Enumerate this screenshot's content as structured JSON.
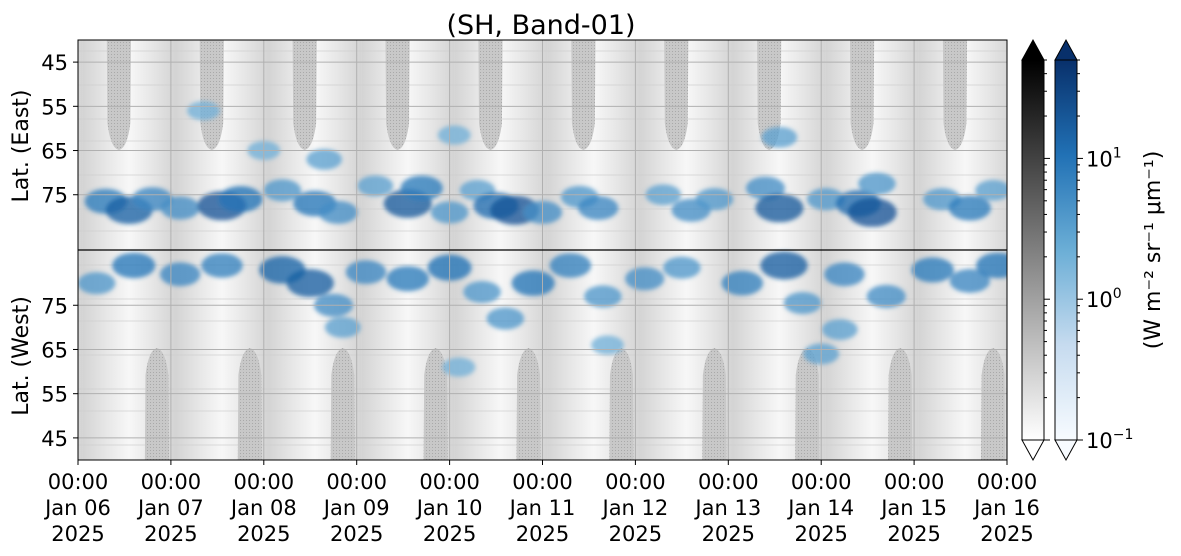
{
  "chart_data": {
    "type": "heatmap",
    "title": "(SH, Band-01)",
    "panels": [
      {
        "name": "east",
        "ylabel": "Lat. (East)",
        "yticks": [
          "45",
          "55",
          "65",
          "75"
        ],
        "ylim": [
          40,
          87.5
        ]
      },
      {
        "name": "west",
        "ylabel": "Lat. (West)",
        "yticks": [
          "75",
          "65",
          "55",
          "45"
        ],
        "ylim": [
          87.5,
          40
        ]
      }
    ],
    "x_ticks": [
      {
        "time": "00:00",
        "date": "Jan 06",
        "year": "2025"
      },
      {
        "time": "00:00",
        "date": "Jan 07",
        "year": "2025"
      },
      {
        "time": "00:00",
        "date": "Jan 08",
        "year": "2025"
      },
      {
        "time": "00:00",
        "date": "Jan 09",
        "year": "2025"
      },
      {
        "time": "00:00",
        "date": "Jan 10",
        "year": "2025"
      },
      {
        "time": "00:00",
        "date": "Jan 11",
        "year": "2025"
      },
      {
        "time": "00:00",
        "date": "Jan 12",
        "year": "2025"
      },
      {
        "time": "00:00",
        "date": "Jan 13",
        "year": "2025"
      },
      {
        "time": "00:00",
        "date": "Jan 14",
        "year": "2025"
      },
      {
        "time": "00:00",
        "date": "Jan 15",
        "year": "2025"
      },
      {
        "time": "00:00",
        "date": "Jan 16",
        "year": "2025"
      }
    ],
    "xlim": [
      "2025-01-06 00:00",
      "2025-01-16 00:00"
    ],
    "colorbar": {
      "label": "(W m⁻² sr⁻¹ μm⁻¹)",
      "scale": "log",
      "range": [
        0.1,
        50
      ],
      "tick_labels": [
        {
          "value": 10,
          "base": "10",
          "exp": "1"
        },
        {
          "value": 1,
          "base": "10",
          "exp": "0"
        },
        {
          "value": 0.1,
          "base": "10",
          "exp": "−1"
        }
      ],
      "colormaps": [
        "Greys",
        "Blues"
      ],
      "extend": "both"
    },
    "grid": true,
    "patches_east": [
      {
        "day": 0.3,
        "lat": 76.5,
        "value": 8
      },
      {
        "day": 0.55,
        "lat": 78.5,
        "value": 15
      },
      {
        "day": 0.8,
        "lat": 76.0,
        "value": 6
      },
      {
        "day": 1.1,
        "lat": 78.0,
        "value": 5
      },
      {
        "day": 1.55,
        "lat": 77.5,
        "value": 20
      },
      {
        "day": 1.75,
        "lat": 76.0,
        "value": 10
      },
      {
        "day": 2.2,
        "lat": 74.0,
        "value": 4
      },
      {
        "day": 2.55,
        "lat": 77.0,
        "value": 9
      },
      {
        "day": 2.65,
        "lat": 67.0,
        "value": 3
      },
      {
        "day": 2.8,
        "lat": 79.0,
        "value": 5
      },
      {
        "day": 3.2,
        "lat": 73.0,
        "value": 3
      },
      {
        "day": 3.55,
        "lat": 77.0,
        "value": 18
      },
      {
        "day": 3.7,
        "lat": 73.5,
        "value": 8
      },
      {
        "day": 4.0,
        "lat": 79.0,
        "value": 4
      },
      {
        "day": 4.3,
        "lat": 74.0,
        "value": 3
      },
      {
        "day": 4.5,
        "lat": 77.5,
        "value": 12
      },
      {
        "day": 4.7,
        "lat": 78.5,
        "value": 20
      },
      {
        "day": 5.0,
        "lat": 79.0,
        "value": 5
      },
      {
        "day": 5.4,
        "lat": 75.5,
        "value": 4
      },
      {
        "day": 5.6,
        "lat": 78.0,
        "value": 6
      },
      {
        "day": 6.3,
        "lat": 75.0,
        "value": 3
      },
      {
        "day": 6.6,
        "lat": 78.5,
        "value": 5
      },
      {
        "day": 6.85,
        "lat": 76.0,
        "value": 4
      },
      {
        "day": 7.4,
        "lat": 73.5,
        "value": 5
      },
      {
        "day": 7.55,
        "lat": 78.0,
        "value": 18
      },
      {
        "day": 7.55,
        "lat": 62.0,
        "value": 3
      },
      {
        "day": 8.05,
        "lat": 76.0,
        "value": 4
      },
      {
        "day": 8.4,
        "lat": 77.0,
        "value": 12
      },
      {
        "day": 8.55,
        "lat": 79.0,
        "value": 20
      },
      {
        "day": 8.6,
        "lat": 72.5,
        "value": 4
      },
      {
        "day": 9.3,
        "lat": 76.0,
        "value": 4
      },
      {
        "day": 9.6,
        "lat": 78.0,
        "value": 8
      },
      {
        "day": 9.85,
        "lat": 74.0,
        "value": 3
      },
      {
        "day": 2.0,
        "lat": 65.0,
        "value": 2
      },
      {
        "day": 4.05,
        "lat": 61.5,
        "value": 2
      },
      {
        "day": 1.35,
        "lat": 56.0,
        "value": 2
      }
    ],
    "patches_west": [
      {
        "day": 0.2,
        "lat": 80.0,
        "value": 4
      },
      {
        "day": 0.6,
        "lat": 84.0,
        "value": 9
      },
      {
        "day": 1.1,
        "lat": 82.0,
        "value": 6
      },
      {
        "day": 1.55,
        "lat": 84.0,
        "value": 7
      },
      {
        "day": 2.2,
        "lat": 83.0,
        "value": 14
      },
      {
        "day": 2.5,
        "lat": 80.0,
        "value": 16
      },
      {
        "day": 2.75,
        "lat": 75.0,
        "value": 5
      },
      {
        "day": 3.1,
        "lat": 82.5,
        "value": 6
      },
      {
        "day": 3.55,
        "lat": 81.0,
        "value": 8
      },
      {
        "day": 4.0,
        "lat": 83.5,
        "value": 10
      },
      {
        "day": 4.35,
        "lat": 78.0,
        "value": 4
      },
      {
        "day": 4.6,
        "lat": 72.0,
        "value": 4
      },
      {
        "day": 4.9,
        "lat": 80.0,
        "value": 9
      },
      {
        "day": 5.3,
        "lat": 84.0,
        "value": 7
      },
      {
        "day": 5.65,
        "lat": 77.0,
        "value": 4
      },
      {
        "day": 6.1,
        "lat": 81.0,
        "value": 5
      },
      {
        "day": 6.5,
        "lat": 83.5,
        "value": 4
      },
      {
        "day": 7.15,
        "lat": 80.0,
        "value": 7
      },
      {
        "day": 7.6,
        "lat": 84.0,
        "value": 16
      },
      {
        "day": 7.8,
        "lat": 75.5,
        "value": 4
      },
      {
        "day": 8.2,
        "lat": 69.5,
        "value": 3
      },
      {
        "day": 8.25,
        "lat": 82.0,
        "value": 6
      },
      {
        "day": 8.7,
        "lat": 77.0,
        "value": 5
      },
      {
        "day": 9.2,
        "lat": 83.0,
        "value": 8
      },
      {
        "day": 9.6,
        "lat": 80.5,
        "value": 6
      },
      {
        "day": 9.9,
        "lat": 84.0,
        "value": 9
      },
      {
        "day": 4.1,
        "lat": 61.0,
        "value": 2
      },
      {
        "day": 2.85,
        "lat": 70.0,
        "value": 3
      },
      {
        "day": 5.7,
        "lat": 66.0,
        "value": 2
      },
      {
        "day": 8.0,
        "lat": 64.0,
        "value": 3
      }
    ]
  }
}
